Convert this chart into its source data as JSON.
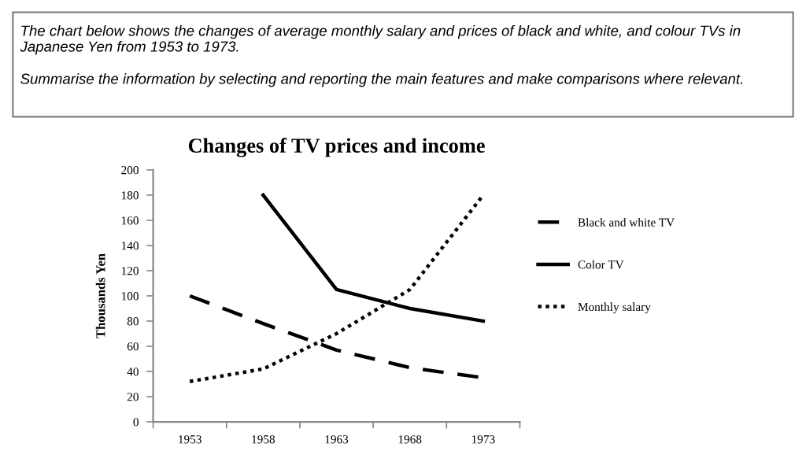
{
  "chart_data": {
    "type": "line",
    "title": "Changes of TV prices and income",
    "ylabel": "Thousands Yen",
    "annotations": [
      "The chart below shows the changes of average monthly salary and prices of black and white, and colour TVs in Japanese Yen from 1953 to 1973.",
      "Summarise the information by selecting and reporting the main features and make comparisons where relevant."
    ],
    "categories": [
      "1953",
      "1958",
      "1963",
      "1968",
      "1973"
    ],
    "series": [
      {
        "name": "Black and white TV",
        "color": "#000000",
        "line_style": "dashed",
        "values": [
          100,
          78,
          57,
          43,
          35
        ]
      },
      {
        "name": "Color TV",
        "color": "#000000",
        "line_style": "solid",
        "values": [
          null,
          180,
          105,
          90,
          80
        ]
      },
      {
        "name": "Monthly salary",
        "color": "#000000",
        "line_style": "dotted",
        "values": [
          32,
          42,
          70,
          105,
          180
        ]
      }
    ],
    "ylim": [
      0,
      200
    ],
    "yticks": [
      0,
      20,
      40,
      60,
      80,
      100,
      120,
      140,
      160,
      180,
      200
    ],
    "grid": false,
    "legend": "right",
    "marker": "none"
  }
}
